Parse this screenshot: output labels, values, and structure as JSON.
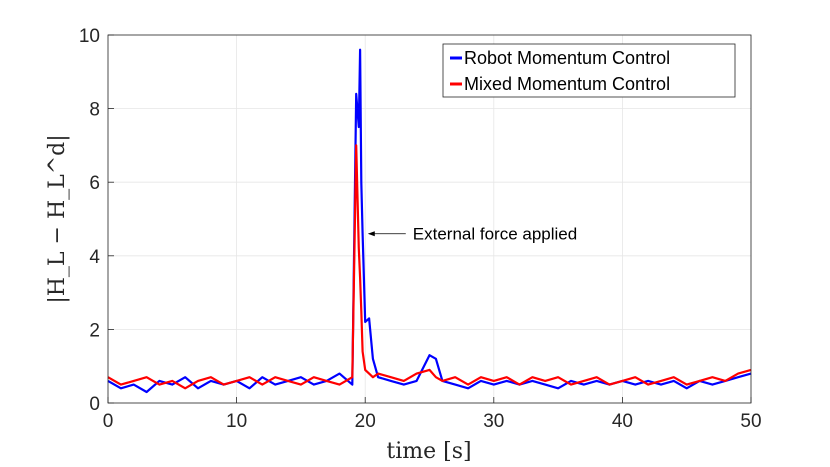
{
  "chart_data": {
    "type": "line",
    "title": "",
    "xlabel": "time [s]",
    "ylabel": "|H_L − H_L^d|",
    "xlim": [
      0,
      50
    ],
    "ylim": [
      0,
      10
    ],
    "xticks": [
      "0",
      "10",
      "20",
      "30",
      "40",
      "50"
    ],
    "yticks": [
      "0",
      "2",
      "4",
      "6",
      "8",
      "10"
    ],
    "grid": true,
    "legend_position": "top-right",
    "series": [
      {
        "name": "Robot Momentum Control",
        "color": "#0000ff",
        "x": [
          0,
          1,
          2,
          3,
          4,
          5,
          6,
          7,
          8,
          9,
          10,
          11,
          12,
          13,
          14,
          15,
          16,
          17,
          18,
          19,
          19.3,
          19.5,
          19.6,
          19.7,
          19.8,
          20,
          20.3,
          20.6,
          21,
          22,
          23,
          24,
          25,
          25.5,
          26,
          27,
          28,
          29,
          30,
          31,
          32,
          33,
          34,
          35,
          36,
          37,
          38,
          39,
          40,
          41,
          42,
          43,
          44,
          45,
          46,
          47,
          48,
          49,
          50
        ],
        "values": [
          0.6,
          0.4,
          0.5,
          0.3,
          0.6,
          0.5,
          0.7,
          0.4,
          0.6,
          0.5,
          0.6,
          0.4,
          0.7,
          0.5,
          0.6,
          0.7,
          0.5,
          0.6,
          0.8,
          0.5,
          8.4,
          7.5,
          9.6,
          6.0,
          4.6,
          2.2,
          2.3,
          1.2,
          0.7,
          0.6,
          0.5,
          0.6,
          1.3,
          1.2,
          0.6,
          0.5,
          0.4,
          0.6,
          0.5,
          0.6,
          0.5,
          0.6,
          0.5,
          0.4,
          0.6,
          0.5,
          0.6,
          0.5,
          0.6,
          0.5,
          0.6,
          0.5,
          0.6,
          0.4,
          0.6,
          0.5,
          0.6,
          0.7,
          0.8
        ]
      },
      {
        "name": "Mixed Momentum Control",
        "color": "#ff0000",
        "x": [
          0,
          1,
          2,
          3,
          4,
          5,
          6,
          7,
          8,
          9,
          10,
          11,
          12,
          13,
          14,
          15,
          16,
          17,
          18,
          19,
          19.3,
          19.5,
          19.6,
          19.7,
          19.8,
          20,
          20.3,
          20.6,
          21,
          22,
          23,
          24,
          25,
          25.5,
          26,
          27,
          28,
          29,
          30,
          31,
          32,
          33,
          34,
          35,
          36,
          37,
          38,
          39,
          40,
          41,
          42,
          43,
          44,
          45,
          46,
          47,
          48,
          49,
          50
        ],
        "values": [
          0.7,
          0.5,
          0.6,
          0.7,
          0.5,
          0.6,
          0.4,
          0.6,
          0.7,
          0.5,
          0.6,
          0.7,
          0.5,
          0.7,
          0.6,
          0.5,
          0.7,
          0.6,
          0.5,
          0.7,
          7.0,
          4.2,
          3.4,
          2.5,
          1.4,
          0.9,
          0.8,
          0.7,
          0.8,
          0.7,
          0.6,
          0.8,
          0.9,
          0.7,
          0.6,
          0.7,
          0.5,
          0.7,
          0.6,
          0.7,
          0.5,
          0.7,
          0.6,
          0.7,
          0.5,
          0.6,
          0.7,
          0.5,
          0.6,
          0.7,
          0.5,
          0.6,
          0.7,
          0.5,
          0.6,
          0.7,
          0.6,
          0.8,
          0.9
        ]
      }
    ],
    "annotations": [
      {
        "text": "External force applied",
        "arrow_to": [
          20.2,
          4.6
        ]
      }
    ]
  }
}
